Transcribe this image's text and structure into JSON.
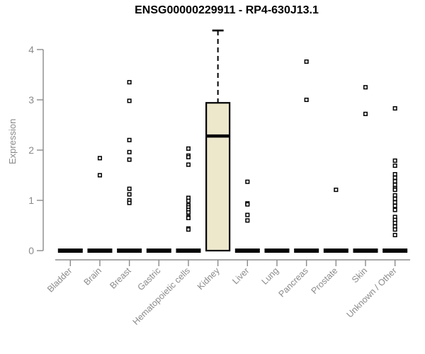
{
  "header": {
    "title": "ENSG00000229911 - RP4-630J13.1"
  },
  "chart_data": {
    "type": "boxplot",
    "title": "ENSG00000229911 - RP4-630J13.1",
    "xlabel": "",
    "ylabel": "Expression",
    "ylim": [
      0,
      4.4
    ],
    "yticks": [
      0,
      1,
      2,
      3,
      4
    ],
    "grid": false,
    "legend": null,
    "categories": [
      "Bladder",
      "Brain",
      "Breast",
      "Gastric",
      "Hematopoietic cells",
      "Kidney",
      "Liver",
      "Lung",
      "Pancreas",
      "Prostate",
      "Skin",
      "Unknown / Other"
    ],
    "boxes": [
      {
        "category": "Bladder",
        "q1": 0,
        "median": 0,
        "q3": 0,
        "whisker_low": 0,
        "whisker_high": 0,
        "outliers": []
      },
      {
        "category": "Brain",
        "q1": 0,
        "median": 0,
        "q3": 0,
        "whisker_low": 0,
        "whisker_high": 0,
        "outliers": [
          1.84,
          1.5
        ]
      },
      {
        "category": "Breast",
        "q1": 0,
        "median": 0,
        "q3": 0,
        "whisker_low": 0,
        "whisker_high": 0,
        "outliers": [
          3.35,
          2.98,
          2.2,
          1.96,
          1.81,
          1.23,
          1.12,
          1.0,
          0.95
        ]
      },
      {
        "category": "Gastric",
        "q1": 0,
        "median": 0,
        "q3": 0,
        "whisker_low": 0,
        "whisker_high": 0,
        "outliers": []
      },
      {
        "category": "Hematopoietic cells",
        "q1": 0,
        "median": 0,
        "q3": 0,
        "whisker_low": 0,
        "whisker_high": 0,
        "outliers": [
          2.03,
          1.89,
          1.86,
          1.71,
          1.05,
          0.99,
          0.9,
          0.86,
          0.81,
          0.76,
          0.67,
          0.65,
          0.44,
          0.42
        ]
      },
      {
        "category": "Kidney",
        "q1": 0,
        "median": 2.28,
        "q3": 2.94,
        "whisker_low": 0,
        "whisker_high": 4.38,
        "outliers": []
      },
      {
        "category": "Liver",
        "q1": 0,
        "median": 0,
        "q3": 0,
        "whisker_low": 0,
        "whisker_high": 0,
        "outliers": [
          1.37,
          0.94,
          0.92,
          0.71,
          0.6
        ]
      },
      {
        "category": "Lung",
        "q1": 0,
        "median": 0,
        "q3": 0,
        "whisker_low": 0,
        "whisker_high": 0,
        "outliers": []
      },
      {
        "category": "Pancreas",
        "q1": 0,
        "median": 0,
        "q3": 0,
        "whisker_low": 0,
        "whisker_high": 0,
        "outliers": [
          3.76,
          3.0
        ]
      },
      {
        "category": "Prostate",
        "q1": 0,
        "median": 0,
        "q3": 0,
        "whisker_low": 0,
        "whisker_high": 0,
        "outliers": [
          1.21
        ]
      },
      {
        "category": "Skin",
        "q1": 0,
        "median": 0,
        "q3": 0,
        "whisker_low": 0,
        "whisker_high": 0,
        "outliers": [
          3.25,
          2.72
        ]
      },
      {
        "category": "Unknown / Other",
        "q1": 0,
        "median": 0,
        "q3": 0,
        "whisker_low": 0,
        "whisker_high": 0,
        "outliers": [
          2.83,
          1.79,
          1.69,
          1.52,
          1.45,
          1.38,
          1.31,
          1.24,
          1.21,
          1.1,
          1.03,
          0.96,
          0.89,
          0.81,
          0.67,
          0.61,
          0.55,
          0.48,
          0.42,
          0.31
        ]
      }
    ],
    "colors": {
      "box_fill": "#EDE8CC",
      "box_stroke": "#000000",
      "median": "#000000",
      "point_stroke": "#000000",
      "point_fill": "#FFFFFF",
      "axis": "#8A8A8A",
      "tick_label": "#8A8A8A",
      "title": "#000000",
      "background": "#FFFFFF"
    }
  }
}
